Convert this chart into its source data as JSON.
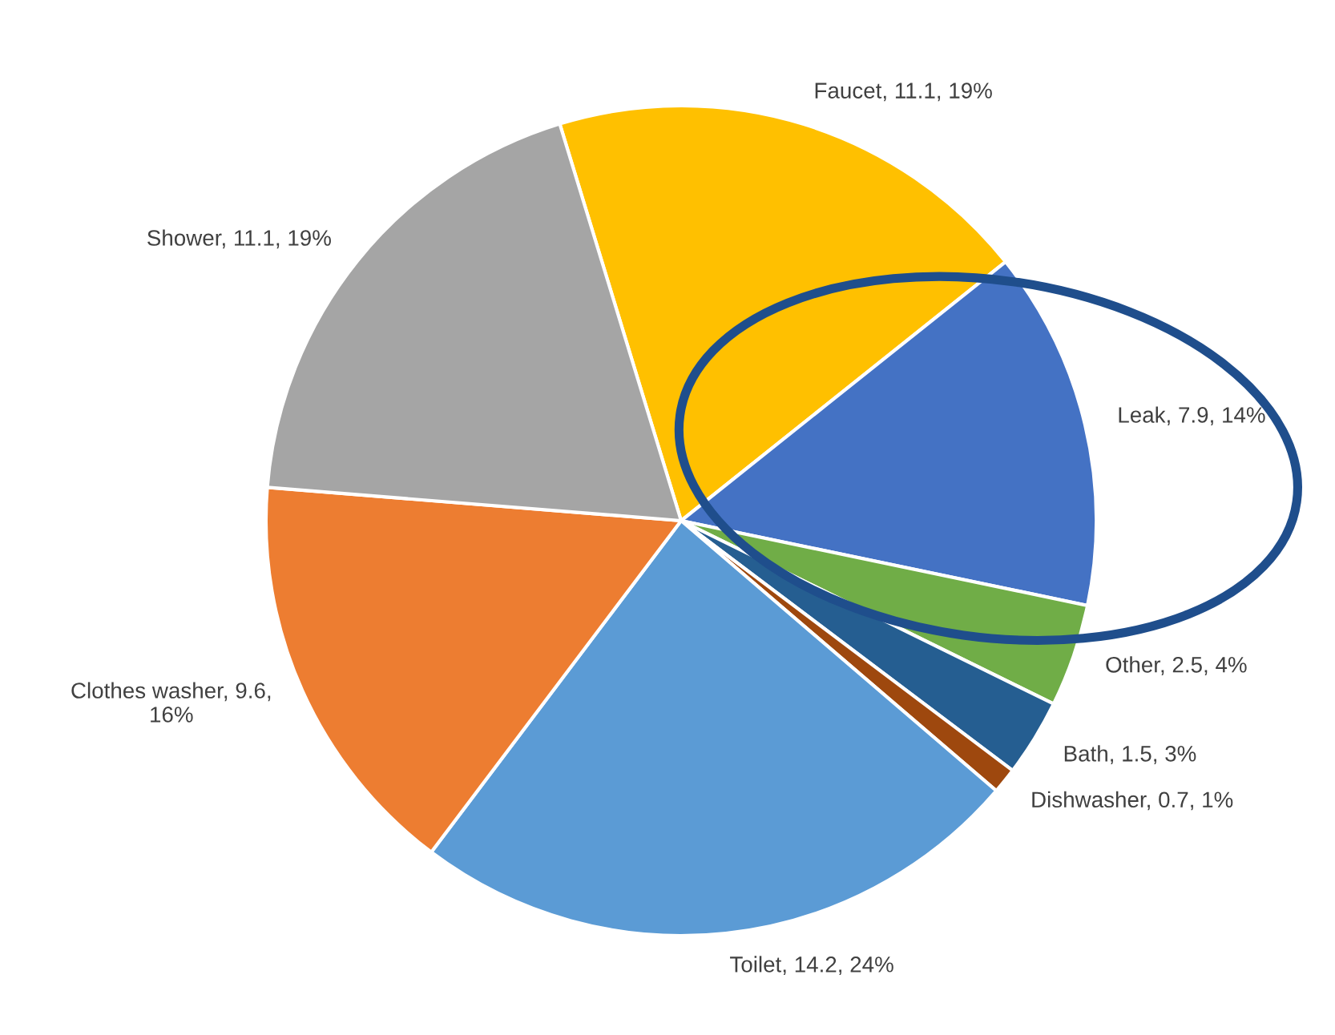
{
  "chart_data": {
    "type": "pie",
    "categories": [
      "Faucet, 11.1, 19%",
      "Leak, 7.9, 14%",
      "Other, 2.5, 4%",
      "Bath, 1.5, 3%",
      "Dishwasher, 0.7, 1%",
      "Toilet, 14.2, 24%",
      "Clothes washer, 9.6,\n16%",
      "Shower, 11.1, 19%"
    ],
    "values": [
      19,
      14,
      4,
      3,
      1,
      24,
      16,
      19
    ],
    "colors": [
      "#ffc000",
      "#4472c4",
      "#70ad47",
      "#255e91",
      "#9e480e",
      "#5b9bd5",
      "#ed7d31",
      "#a5a5a5"
    ]
  }
}
